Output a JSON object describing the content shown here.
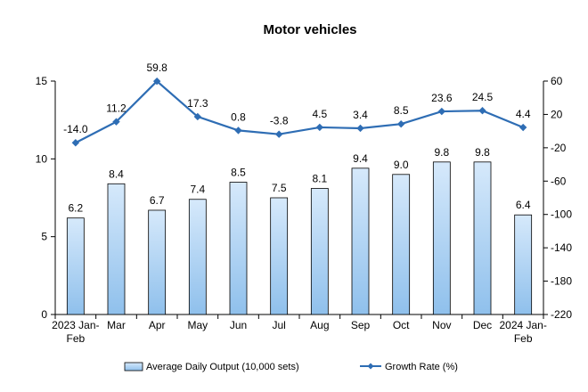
{
  "chart_data": {
    "type": "bar",
    "title": "Motor vehicles",
    "categories": [
      [
        "2023 Jan-",
        "Feb"
      ],
      [
        "Mar"
      ],
      [
        "Apr"
      ],
      [
        "May"
      ],
      [
        "Jun"
      ],
      [
        "Jul"
      ],
      [
        "Aug"
      ],
      [
        "Sep"
      ],
      [
        "Oct"
      ],
      [
        "Nov"
      ],
      [
        "Dec"
      ],
      [
        "2024 Jan-",
        "Feb"
      ]
    ],
    "series": [
      {
        "name": "Average Daily Output (10,000 sets)",
        "type": "bar",
        "axis": "left",
        "values": [
          6.2,
          8.4,
          6.7,
          7.4,
          8.5,
          7.5,
          8.1,
          9.4,
          9.0,
          9.8,
          9.8,
          6.4
        ],
        "labels": [
          "6.2",
          "8.4",
          "6.7",
          "7.4",
          "8.5",
          "7.5",
          "8.1",
          "9.4",
          "9.0",
          "9.8",
          "9.8",
          "6.4"
        ]
      },
      {
        "name": "Growth Rate (%)",
        "type": "line",
        "axis": "right",
        "values": [
          -14.0,
          11.2,
          59.8,
          17.3,
          0.8,
          -3.8,
          4.5,
          3.4,
          8.5,
          23.6,
          24.5,
          4.4
        ],
        "labels": [
          "-14.0",
          "11.2",
          "59.8",
          "17.3",
          "0.8",
          "-3.8",
          "4.5",
          "3.4",
          "8.5",
          "23.6",
          "24.5",
          "4.4"
        ]
      }
    ],
    "y_left": {
      "min": 0,
      "max": 15,
      "ticks": [
        "0",
        "5",
        "10",
        "15"
      ]
    },
    "y_right": {
      "min": -220,
      "max": 60,
      "ticks": [
        "-220",
        "-180",
        "-140",
        "-100",
        "-60",
        "-20",
        "20",
        "60"
      ]
    },
    "legend": "bottom",
    "grid": false,
    "colors": {
      "bar_fill_top": "#d6e9fb",
      "bar_fill_bottom": "#8fc0ec",
      "bar_stroke": "#000000",
      "line": "#2e6db4"
    }
  }
}
